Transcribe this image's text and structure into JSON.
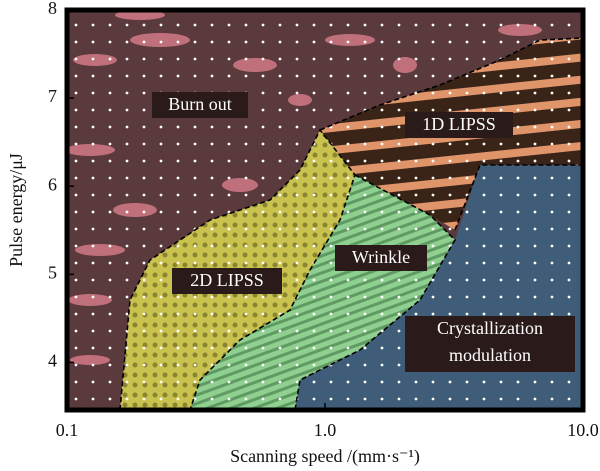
{
  "chart_data": {
    "type": "phase-map",
    "x_label": "Scanning speed /(mm·s⁻¹)",
    "y_label": "Pulse energy/μJ",
    "xlog": true,
    "xlim": [
      0.1,
      10
    ],
    "xticks": [
      0.1,
      {
        "value": 1,
        "label": "1.0"
      },
      {
        "value": 10,
        "label": "10.0"
      }
    ],
    "ylim": [
      3.46,
      8
    ],
    "yticks": [
      4,
      5,
      6,
      7,
      8
    ],
    "region_labels": [
      "Burn out",
      "1D LIPSS",
      "2D LIPSS",
      "Wrinkle",
      "Crystallization",
      "modulation"
    ]
  }
}
